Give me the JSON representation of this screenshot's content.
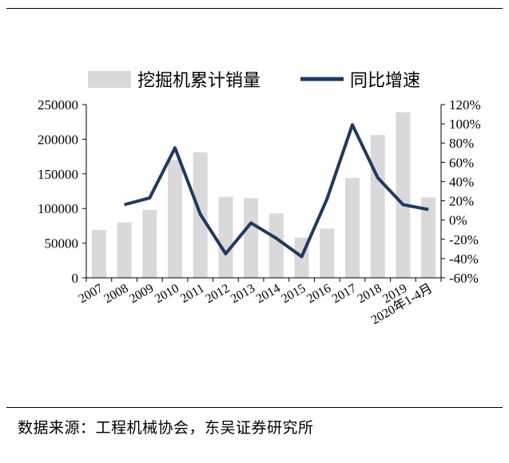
{
  "chart_data": {
    "type": "bar",
    "categories": [
      "2007",
      "2008",
      "2009",
      "2010",
      "2011",
      "2012",
      "2013",
      "2014",
      "2015",
      "2016",
      "2017",
      "2018",
      "2019",
      "2020年1-4月"
    ],
    "series": [
      {
        "name": "挖掘机累计销量",
        "type": "bar",
        "axis": "left",
        "color": "#d9d9d9",
        "values": [
          69000,
          80000,
          98000,
          170000,
          181000,
          117000,
          115000,
          93000,
          58000,
          71000,
          144000,
          206000,
          239000,
          116000
        ]
      },
      {
        "name": "同比增速",
        "type": "line",
        "axis": "right",
        "color": "#1f3a5f",
        "values": [
          null,
          0.16,
          0.23,
          0.75,
          0.06,
          -0.35,
          -0.03,
          -0.19,
          -0.38,
          0.22,
          0.99,
          0.44,
          0.16,
          0.11
        ]
      }
    ],
    "y_left": {
      "min": 0,
      "max": 250000,
      "ticks": [
        "0",
        "50000",
        "100000",
        "150000",
        "200000",
        "250000"
      ]
    },
    "y_right": {
      "min": -0.6,
      "max": 1.2,
      "ticks": [
        "-60%",
        "-40%",
        "-20%",
        "0%",
        "20%",
        "40%",
        "60%",
        "80%",
        "100%",
        "120%"
      ]
    },
    "legend": {
      "position": "top",
      "items": [
        "挖掘机累计销量",
        "同比增速"
      ]
    },
    "grid": false
  },
  "source": "数据来源：工程机械协会，东吴证券研究所"
}
